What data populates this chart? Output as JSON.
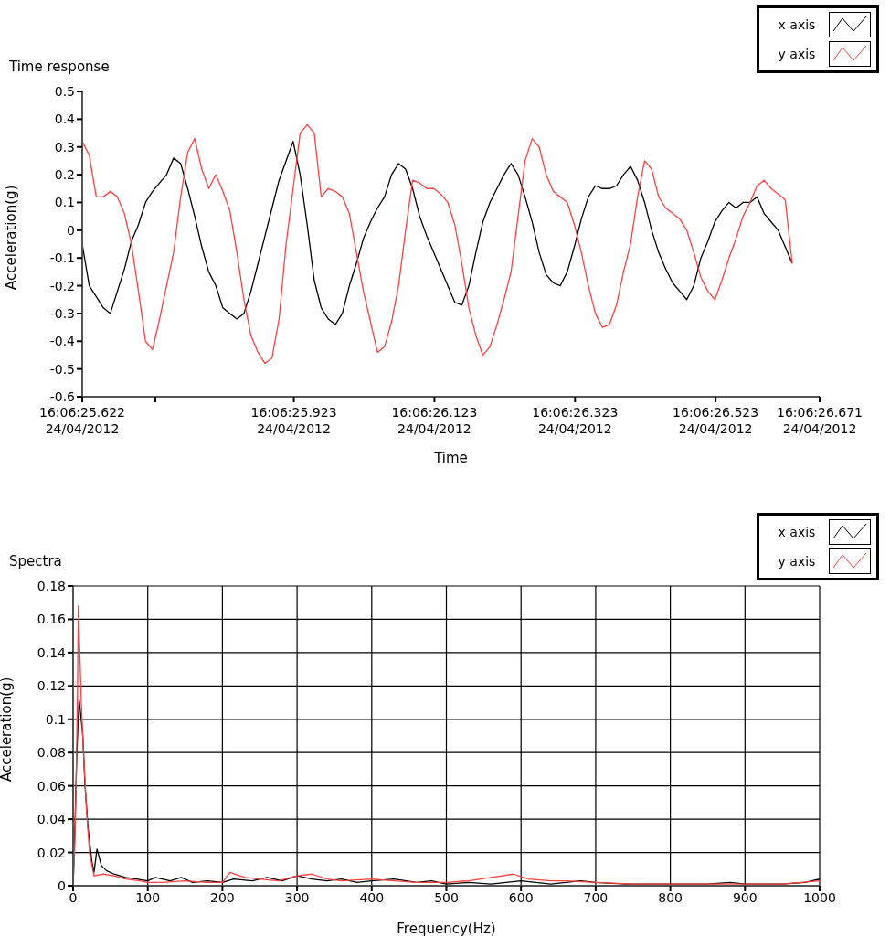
{
  "chart_data": [
    {
      "type": "line",
      "title": "Time response",
      "xlabel": "Time",
      "ylabel": "Acceleration(g)",
      "legend": "top right",
      "grid": false,
      "marker": "none",
      "line_style": "solid",
      "xlim": [
        "2012-04-24T16:06:25.622",
        "2012-04-24T16:06:26.671"
      ],
      "ylim": [
        -0.6,
        0.5
      ],
      "yticks": [
        -0.6,
        -0.5,
        -0.4,
        -0.3,
        -0.2,
        -0.1,
        0,
        0.1,
        0.2,
        0.3,
        0.4,
        0.5
      ],
      "xticks": [
        {
          "value": "2012-04-24T16:06:25.622",
          "label": "16:06:25.622\n24/04/2012"
        },
        {
          "value": "2012-04-24T16:06:25.726",
          "label": null
        },
        {
          "value": "2012-04-24T16:06:25.923",
          "label": "16:06:25.923\n24/04/2012"
        },
        {
          "value": "2012-04-24T16:06:26.123",
          "label": "16:06:26.123\n24/04/2012"
        },
        {
          "value": "2012-04-24T16:06:26.323",
          "label": "16:06:26.323\n24/04/2012"
        },
        {
          "value": "2012-04-24T16:06:26.523",
          "label": "16:06:26.523\n24/04/2012"
        },
        {
          "value": "2012-04-24T16:06:26.671",
          "label": "16:06:26.671\n24/04/2012"
        }
      ],
      "x": [
        "2012-04-24T16:06:25.622",
        "2012-04-24T16:06:25.632",
        "2012-04-24T16:06:25.642",
        "2012-04-24T16:06:25.652",
        "2012-04-24T16:06:25.662",
        "2012-04-24T16:06:25.672",
        "2012-04-24T16:06:25.682",
        "2012-04-24T16:06:25.692",
        "2012-04-24T16:06:25.702",
        "2012-04-24T16:06:25.712",
        "2012-04-24T16:06:25.722",
        "2012-04-24T16:06:25.732",
        "2012-04-24T16:06:25.742",
        "2012-04-24T16:06:25.752",
        "2012-04-24T16:06:25.762",
        "2012-04-24T16:06:25.772",
        "2012-04-24T16:06:25.782",
        "2012-04-24T16:06:25.792",
        "2012-04-24T16:06:25.802",
        "2012-04-24T16:06:25.812",
        "2012-04-24T16:06:25.822",
        "2012-04-24T16:06:25.832",
        "2012-04-24T16:06:25.842",
        "2012-04-24T16:06:25.852",
        "2012-04-24T16:06:25.862",
        "2012-04-24T16:06:25.872",
        "2012-04-24T16:06:25.882",
        "2012-04-24T16:06:25.892",
        "2012-04-24T16:06:25.902",
        "2012-04-24T16:06:25.912",
        "2012-04-24T16:06:25.922",
        "2012-04-24T16:06:25.932",
        "2012-04-24T16:06:25.942",
        "2012-04-24T16:06:25.952",
        "2012-04-24T16:06:25.962",
        "2012-04-24T16:06:25.972",
        "2012-04-24T16:06:25.982",
        "2012-04-24T16:06:25.992",
        "2012-04-24T16:06:26.002",
        "2012-04-24T16:06:26.012",
        "2012-04-24T16:06:26.022",
        "2012-04-24T16:06:26.032",
        "2012-04-24T16:06:26.042",
        "2012-04-24T16:06:26.052",
        "2012-04-24T16:06:26.062",
        "2012-04-24T16:06:26.072",
        "2012-04-24T16:06:26.082",
        "2012-04-24T16:06:26.092",
        "2012-04-24T16:06:26.102",
        "2012-04-24T16:06:26.112",
        "2012-04-24T16:06:26.122",
        "2012-04-24T16:06:26.132",
        "2012-04-24T16:06:26.142",
        "2012-04-24T16:06:26.152",
        "2012-04-24T16:06:26.162",
        "2012-04-24T16:06:26.172",
        "2012-04-24T16:06:26.182",
        "2012-04-24T16:06:26.192",
        "2012-04-24T16:06:26.202",
        "2012-04-24T16:06:26.212",
        "2012-04-24T16:06:26.222",
        "2012-04-24T16:06:26.232",
        "2012-04-24T16:06:26.242",
        "2012-04-24T16:06:26.252",
        "2012-04-24T16:06:26.262",
        "2012-04-24T16:06:26.272",
        "2012-04-24T16:06:26.282",
        "2012-04-24T16:06:26.292",
        "2012-04-24T16:06:26.302",
        "2012-04-24T16:06:26.312",
        "2012-04-24T16:06:26.322",
        "2012-04-24T16:06:26.332",
        "2012-04-24T16:06:26.342",
        "2012-04-24T16:06:26.352",
        "2012-04-24T16:06:26.362",
        "2012-04-24T16:06:26.372",
        "2012-04-24T16:06:26.382",
        "2012-04-24T16:06:26.392",
        "2012-04-24T16:06:26.402",
        "2012-04-24T16:06:26.412",
        "2012-04-24T16:06:26.422",
        "2012-04-24T16:06:26.432",
        "2012-04-24T16:06:26.442",
        "2012-04-24T16:06:26.452",
        "2012-04-24T16:06:26.462",
        "2012-04-24T16:06:26.472",
        "2012-04-24T16:06:26.482",
        "2012-04-24T16:06:26.492",
        "2012-04-24T16:06:26.502",
        "2012-04-24T16:06:26.512",
        "2012-04-24T16:06:26.522",
        "2012-04-24T16:06:26.532",
        "2012-04-24T16:06:26.542",
        "2012-04-24T16:06:26.552",
        "2012-04-24T16:06:26.562",
        "2012-04-24T16:06:26.572",
        "2012-04-24T16:06:26.582",
        "2012-04-24T16:06:26.592",
        "2012-04-24T16:06:26.602",
        "2012-04-24T16:06:26.612",
        "2012-04-24T16:06:26.622",
        "2012-04-24T16:06:26.632"
      ],
      "series": [
        {
          "name": "x axis",
          "color": "#000000",
          "values": [
            -0.05,
            -0.2,
            -0.24,
            -0.28,
            -0.3,
            -0.22,
            -0.14,
            -0.04,
            0.02,
            0.1,
            0.14,
            0.17,
            0.2,
            0.26,
            0.24,
            0.15,
            0.05,
            -0.06,
            -0.15,
            -0.2,
            -0.28,
            -0.3,
            -0.32,
            -0.3,
            -0.22,
            -0.12,
            -0.02,
            0.08,
            0.18,
            0.25,
            0.32,
            0.2,
            0.02,
            -0.18,
            -0.28,
            -0.32,
            -0.34,
            -0.3,
            -0.2,
            -0.12,
            -0.03,
            0.03,
            0.08,
            0.12,
            0.2,
            0.24,
            0.22,
            0.15,
            0.05,
            -0.02,
            -0.08,
            -0.14,
            -0.2,
            -0.26,
            -0.27,
            -0.2,
            -0.08,
            0.03,
            0.1,
            0.15,
            0.2,
            0.24,
            0.2,
            0.12,
            0.03,
            -0.08,
            -0.16,
            -0.19,
            -0.2,
            -0.15,
            -0.06,
            0.04,
            0.12,
            0.16,
            0.15,
            0.15,
            0.16,
            0.2,
            0.23,
            0.18,
            0.1,
            0.0,
            -0.08,
            -0.14,
            -0.19,
            -0.22,
            -0.25,
            -0.2,
            -0.1,
            -0.04,
            0.03,
            0.07,
            0.1,
            0.08,
            0.1,
            0.1,
            0.12,
            0.06,
            0.03,
            0.0,
            -0.06,
            -0.12
          ]
        },
        {
          "name": "y axis",
          "color": "#ff4040",
          "values": [
            0.32,
            0.27,
            0.12,
            0.12,
            0.14,
            0.12,
            0.06,
            -0.05,
            -0.22,
            -0.4,
            -0.43,
            -0.32,
            -0.2,
            -0.08,
            0.12,
            0.28,
            0.33,
            0.22,
            0.15,
            0.2,
            0.14,
            0.07,
            -0.08,
            -0.25,
            -0.38,
            -0.44,
            -0.48,
            -0.46,
            -0.32,
            -0.05,
            0.15,
            0.35,
            0.38,
            0.35,
            0.12,
            0.15,
            0.14,
            0.12,
            0.06,
            -0.08,
            -0.22,
            -0.33,
            -0.44,
            -0.42,
            -0.33,
            -0.2,
            0.0,
            0.18,
            0.17,
            0.15,
            0.15,
            0.13,
            0.1,
            0.02,
            -0.12,
            -0.28,
            -0.38,
            -0.45,
            -0.42,
            -0.34,
            -0.25,
            -0.15,
            0.05,
            0.25,
            0.33,
            0.3,
            0.2,
            0.14,
            0.12,
            0.1,
            0.02,
            -0.08,
            -0.2,
            -0.3,
            -0.35,
            -0.34,
            -0.27,
            -0.15,
            -0.05,
            0.12,
            0.25,
            0.22,
            0.12,
            0.08,
            0.06,
            0.04,
            0.0,
            -0.08,
            -0.17,
            -0.22,
            -0.25,
            -0.18,
            -0.1,
            -0.03,
            0.05,
            0.1,
            0.16,
            0.18,
            0.15,
            0.13,
            0.11,
            -0.12
          ]
        }
      ]
    },
    {
      "type": "line",
      "title": "Spectra",
      "xlabel": "Frequency(Hz)",
      "ylabel": "Acceleration(g)",
      "legend": "top right",
      "grid": true,
      "marker": "none",
      "line_style": "solid",
      "xlim": [
        0,
        1000
      ],
      "ylim": [
        0,
        0.18
      ],
      "xticks": [
        0,
        100,
        200,
        300,
        400,
        500,
        600,
        700,
        800,
        900,
        1000
      ],
      "yticks": [
        0,
        0.02,
        0.04,
        0.06,
        0.08,
        0.1,
        0.12,
        0.14,
        0.16,
        0.18
      ],
      "series": [
        {
          "name": "x axis",
          "color": "#000000",
          "x": [
            0,
            2,
            5,
            8,
            10,
            13,
            16,
            20,
            25,
            28,
            32,
            38,
            45,
            55,
            70,
            85,
            100,
            110,
            130,
            145,
            160,
            180,
            200,
            215,
            240,
            260,
            280,
            300,
            320,
            340,
            360,
            380,
            400,
            430,
            460,
            480,
            500,
            530,
            560,
            600,
            640,
            680,
            700,
            740,
            800,
            850,
            880,
            900,
            950,
            980,
            1000
          ],
          "values": [
            0,
            0.028,
            0.08,
            0.112,
            0.104,
            0.09,
            0.06,
            0.035,
            0.015,
            0.008,
            0.022,
            0.012,
            0.009,
            0.007,
            0.005,
            0.004,
            0.003,
            0.005,
            0.003,
            0.005,
            0.002,
            0.003,
            0.002,
            0.004,
            0.003,
            0.005,
            0.003,
            0.006,
            0.004,
            0.003,
            0.004,
            0.002,
            0.003,
            0.004,
            0.002,
            0.003,
            0.001,
            0.002,
            0.001,
            0.003,
            0.001,
            0.003,
            0.002,
            0.001,
            0.001,
            0.001,
            0.002,
            0.001,
            0.001,
            0.002,
            0.004
          ]
        },
        {
          "name": "y axis",
          "color": "#ff4040",
          "x": [
            0,
            2,
            4,
            6,
            7,
            9,
            11,
            14,
            18,
            22,
            28,
            40,
            55,
            70,
            90,
            100,
            120,
            150,
            180,
            200,
            210,
            230,
            250,
            275,
            300,
            320,
            340,
            360,
            400,
            430,
            460,
            500,
            530,
            560,
            590,
            610,
            640,
            660,
            700,
            750,
            800,
            850,
            900,
            950,
            1000
          ],
          "values": [
            0,
            0.02,
            0.06,
            0.12,
            0.168,
            0.14,
            0.11,
            0.08,
            0.045,
            0.02,
            0.006,
            0.007,
            0.006,
            0.004,
            0.003,
            0.002,
            0.002,
            0.003,
            0.002,
            0.002,
            0.008,
            0.005,
            0.004,
            0.003,
            0.006,
            0.007,
            0.004,
            0.003,
            0.004,
            0.003,
            0.002,
            0.002,
            0.003,
            0.005,
            0.007,
            0.004,
            0.003,
            0.003,
            0.002,
            0.001,
            0.001,
            0.001,
            0.001,
            0.001,
            0.003
          ]
        }
      ]
    }
  ]
}
